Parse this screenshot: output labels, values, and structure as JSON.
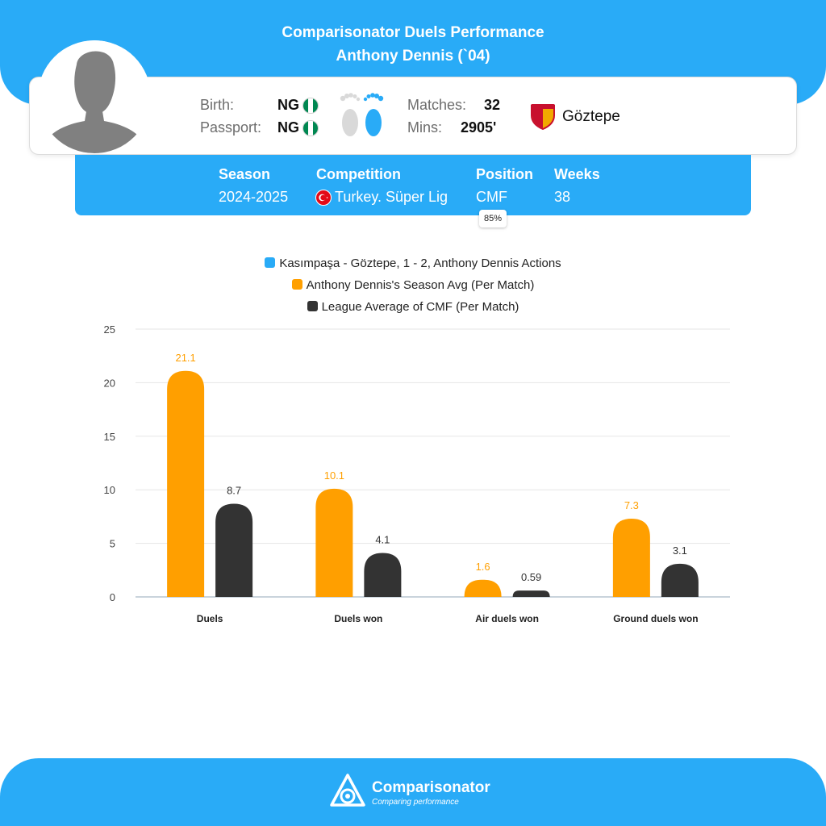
{
  "header": {
    "title": "Comparisonator Duels Performance",
    "subtitle": "Anthony Dennis (`04)"
  },
  "player": {
    "birth_label": "Birth:",
    "birth_value": "NG",
    "passport_label": "Passport:",
    "passport_value": "NG",
    "matches_label": "Matches:",
    "matches_value": "32",
    "mins_label": "Mins:",
    "mins_value": "2905'",
    "team": "Göztepe"
  },
  "season": {
    "season_label": "Season",
    "season_value": "2024-2025",
    "competition_label": "Competition",
    "competition_value": "Turkey. Süper Lig",
    "position_label": "Position",
    "position_value": "CMF",
    "position_pct": "85%",
    "weeks_label": "Weeks",
    "weeks_value": "38"
  },
  "legend": [
    {
      "label": "Kasımpaşa - Göztepe, 1 - 2, Anthony Dennis Actions",
      "color": "#29abf7"
    },
    {
      "label": "Anthony Dennis's Season Avg (Per Match)",
      "color": "#ff9f00"
    },
    {
      "label": "League Average of CMF (Per Match)",
      "color": "#333333"
    }
  ],
  "chart_data": {
    "type": "bar",
    "categories": [
      "Duels",
      "Duels won",
      "Air duels won",
      "Ground duels won"
    ],
    "series": [
      {
        "name": "Anthony Dennis's Season Avg (Per Match)",
        "color": "#ff9f00",
        "label_color": "#ff9f00",
        "values": [
          21.1,
          10.1,
          1.6,
          7.3
        ],
        "labels": [
          "21.1",
          "10.1",
          "1.6",
          "7.3"
        ]
      },
      {
        "name": "League Average of CMF (Per Match)",
        "color": "#333333",
        "label_color": "#333333",
        "values": [
          8.7,
          4.1,
          0.59,
          3.1
        ],
        "labels": [
          "8.7",
          "4.1",
          "0.59",
          "3.1"
        ]
      }
    ],
    "ylim": [
      0,
      25
    ],
    "yticks": [
      0,
      5,
      10,
      15,
      20,
      25
    ],
    "grid": true
  },
  "brand": {
    "name": "Comparisonator",
    "tagline": "Comparing performance"
  },
  "colors": {
    "accent": "#29abf7",
    "season_bar": "#ff9f00",
    "league_bar": "#333333"
  }
}
